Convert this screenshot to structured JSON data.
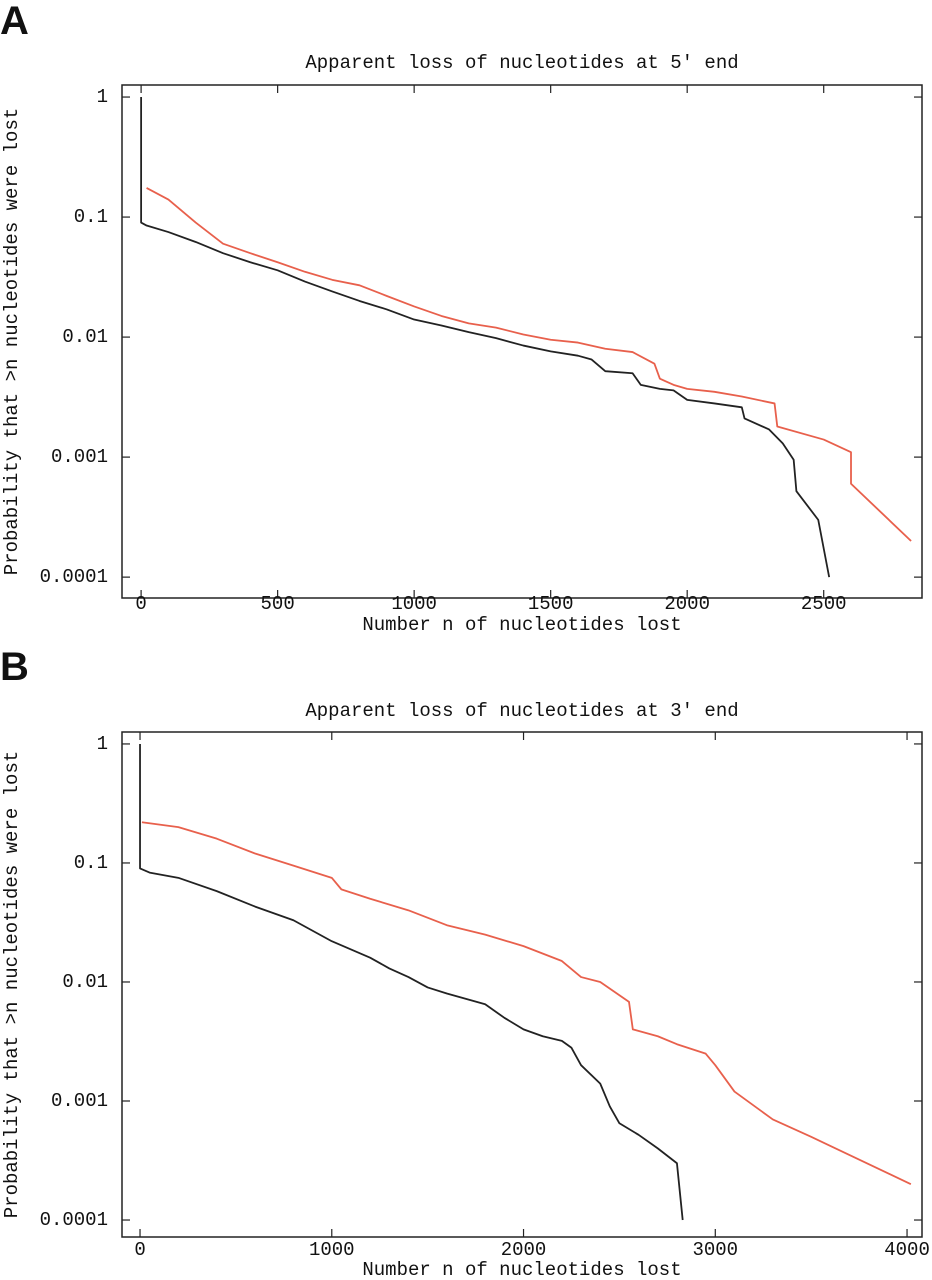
{
  "chart_data": [
    {
      "type": "line",
      "panel_label": "A",
      "title": "Apparent loss of nucleotides at 5′ end",
      "xlabel": "Number n of nucleotides lost",
      "ylabel": "Probability that  >n nucleotides were lost",
      "xlim": [
        -70,
        2860
      ],
      "ylim": [
        6.7e-05,
        1.26
      ],
      "yscale": "log",
      "xticks": [
        0,
        500,
        1000,
        1500,
        2000,
        2500
      ],
      "yticks": [
        1,
        0.1,
        0.01,
        0.001,
        0.0001
      ],
      "series": [
        {
          "color": "#222222",
          "x": [
            0,
            0,
            20,
            100,
            200,
            300,
            400,
            500,
            600,
            700,
            800,
            900,
            1000,
            1100,
            1200,
            1300,
            1400,
            1500,
            1600,
            1650,
            1700,
            1800,
            1830,
            1900,
            1950,
            2000,
            2100,
            2200,
            2210,
            2300,
            2350,
            2390,
            2400,
            2480,
            2520
          ],
          "values": [
            1,
            0.09,
            0.085,
            0.075,
            0.062,
            0.05,
            0.042,
            0.036,
            0.029,
            0.024,
            0.02,
            0.017,
            0.014,
            0.0125,
            0.011,
            0.0098,
            0.0085,
            0.0076,
            0.007,
            0.0065,
            0.0052,
            0.005,
            0.004,
            0.0037,
            0.0036,
            0.003,
            0.0028,
            0.0026,
            0.0021,
            0.0017,
            0.0013,
            0.00095,
            0.00052,
            0.0003,
            0.0001
          ]
        },
        {
          "color": "#e8604c",
          "x": [
            20,
            100,
            200,
            300,
            400,
            500,
            600,
            700,
            800,
            900,
            1000,
            1100,
            1200,
            1300,
            1400,
            1500,
            1600,
            1700,
            1800,
            1880,
            1900,
            1950,
            2000,
            2100,
            2200,
            2320,
            2330,
            2500,
            2600,
            2600,
            2820
          ],
          "values": [
            0.175,
            0.14,
            0.09,
            0.06,
            0.05,
            0.042,
            0.035,
            0.03,
            0.027,
            0.022,
            0.018,
            0.015,
            0.013,
            0.012,
            0.0105,
            0.0095,
            0.009,
            0.008,
            0.0075,
            0.006,
            0.0045,
            0.004,
            0.0037,
            0.0035,
            0.0032,
            0.0028,
            0.0018,
            0.0014,
            0.0011,
            0.0006,
            0.0002
          ]
        }
      ]
    },
    {
      "type": "line",
      "panel_label": "B",
      "title": "Apparent loss of nucleotides at 3′ end",
      "xlabel": "Number n of nucleotides lost",
      "ylabel": "Probability that  >n nucleotides were lost",
      "xlim": [
        -94,
        4078
      ],
      "ylim": [
        7.2e-05,
        1.26
      ],
      "yscale": "log",
      "xticks": [
        0,
        1000,
        2000,
        3000,
        4000
      ],
      "yticks": [
        1,
        0.1,
        0.01,
        0.001,
        0.0001
      ],
      "series": [
        {
          "color": "#222222",
          "x": [
            0,
            0,
            50,
            200,
            400,
            600,
            800,
            1000,
            1200,
            1300,
            1400,
            1500,
            1600,
            1800,
            1900,
            2000,
            2100,
            2200,
            2250,
            2300,
            2400,
            2450,
            2500,
            2600,
            2700,
            2800,
            2830
          ],
          "values": [
            1,
            0.09,
            0.083,
            0.075,
            0.058,
            0.043,
            0.033,
            0.022,
            0.016,
            0.013,
            0.011,
            0.009,
            0.008,
            0.0065,
            0.005,
            0.004,
            0.0035,
            0.0032,
            0.0028,
            0.002,
            0.0014,
            0.0009,
            0.00065,
            0.00052,
            0.0004,
            0.0003,
            0.0001
          ]
        },
        {
          "color": "#e8604c",
          "x": [
            10,
            200,
            400,
            600,
            800,
            1000,
            1050,
            1200,
            1400,
            1600,
            1800,
            2000,
            2200,
            2300,
            2400,
            2550,
            2570,
            2700,
            2800,
            2950,
            3000,
            3100,
            3300,
            3500,
            4020
          ],
          "values": [
            0.22,
            0.2,
            0.16,
            0.12,
            0.095,
            0.075,
            0.06,
            0.05,
            0.04,
            0.03,
            0.025,
            0.02,
            0.015,
            0.011,
            0.01,
            0.0068,
            0.004,
            0.0035,
            0.003,
            0.0025,
            0.002,
            0.0012,
            0.0007,
            0.0005,
            0.0002
          ]
        }
      ]
    }
  ]
}
